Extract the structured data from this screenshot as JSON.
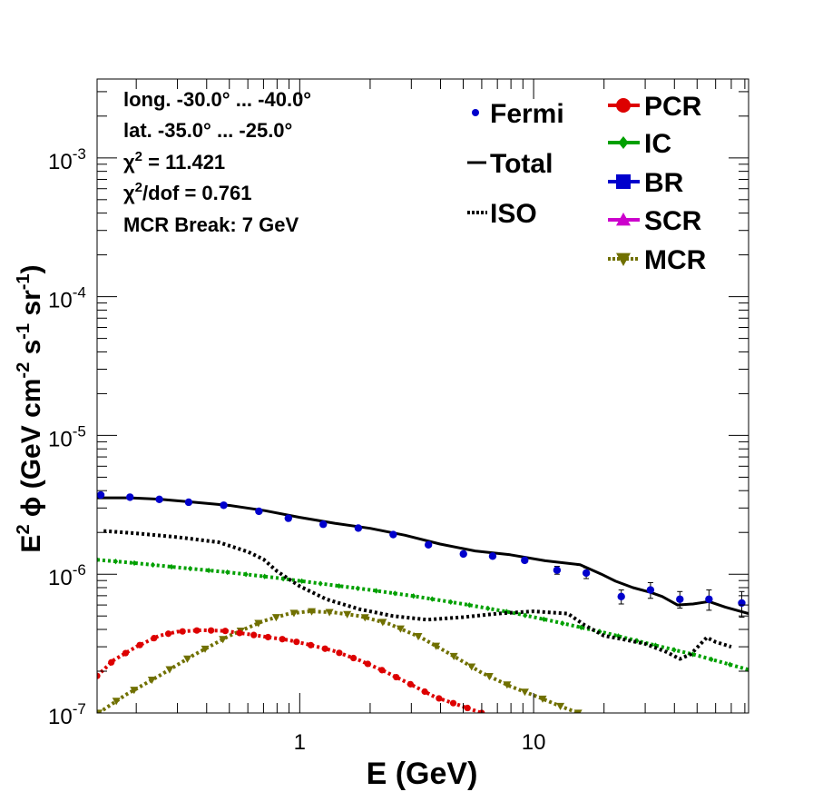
{
  "chart_data": {
    "type": "line",
    "xlabel": "E (GeV)",
    "ylabel": "E² ϕ (GeV cm⁻² s⁻¹ sr⁻¹)",
    "xscale": "log",
    "yscale": "log",
    "xlim": [
      0.136,
      83
    ],
    "ylim": [
      1e-07,
      0.0037
    ],
    "x_ticks": [
      {
        "value": 1,
        "label": "1"
      },
      {
        "value": 10,
        "label": "10"
      }
    ],
    "y_ticks": [
      {
        "value": 1e-07,
        "base": "10",
        "exp": "-7"
      },
      {
        "value": 1e-06,
        "base": "10",
        "exp": "-6"
      },
      {
        "value": 1e-05,
        "base": "10",
        "exp": "-5"
      },
      {
        "value": 0.0001,
        "base": "10",
        "exp": "-4"
      },
      {
        "value": 0.001,
        "base": "10",
        "exp": "-3"
      }
    ],
    "info": [
      {
        "text": "long. -30.0° ... -40.0°"
      },
      {
        "text": "lat. -35.0° ... -25.0°"
      },
      {
        "pre": "χ",
        "sup": "2",
        "post": " = 11.421"
      },
      {
        "pre": "χ",
        "sup": "2",
        "post": "/dof = 0.761"
      },
      {
        "text": "MCR Break:  7 GeV"
      }
    ],
    "legend_left": [
      {
        "label": "Fermi",
        "style": "points",
        "color": "#0000cc"
      },
      {
        "label": "Total",
        "style": "solid",
        "color": "#000000"
      },
      {
        "label": "ISO",
        "style": "dotted",
        "color": "#000000"
      }
    ],
    "legend_right": [
      {
        "label": "PCR",
        "style": "circle",
        "color": "#dd0000"
      },
      {
        "label": "IC",
        "style": "diamond",
        "color": "#00a000"
      },
      {
        "label": "BR",
        "style": "square",
        "color": "#0000cc"
      },
      {
        "label": "SCR",
        "style": "triangle",
        "color": "#cc00cc"
      },
      {
        "label": "MCR",
        "style": "triangle-down",
        "color": "#707000"
      }
    ],
    "fermi": {
      "x": [
        0.141,
        0.188,
        0.251,
        0.335,
        0.473,
        0.669,
        0.894,
        1.26,
        1.78,
        2.51,
        3.55,
        5.01,
        6.68,
        9.16,
        12.59,
        16.79,
        23.7,
        31.6,
        42.2,
        56.2,
        77.6
      ],
      "y": [
        3.72e-06,
        3.59e-06,
        3.46e-06,
        3.3e-06,
        3.14e-06,
        2.84e-06,
        2.53e-06,
        2.29e-06,
        2.15e-06,
        1.93e-06,
        1.63e-06,
        1.4e-06,
        1.35e-06,
        1.26e-06,
        1.07e-06,
        1.02e-06,
        6.9e-07,
        7.7e-07,
        6.6e-07,
        6.6e-07,
        6.2e-07
      ],
      "err": [
        1e-08,
        1e-08,
        1e-08,
        1e-08,
        1e-08,
        1e-08,
        1e-08,
        1e-08,
        1e-08,
        2e-08,
        3e-08,
        3e-08,
        4e-08,
        5e-08,
        7e-08,
        9e-08,
        8e-08,
        1e-07,
        9e-08,
        1.1e-07,
        1.3e-07
      ]
    },
    "series": [
      {
        "name": "Total",
        "color": "#000000",
        "x": [
          0.136,
          0.188,
          0.251,
          0.355,
          0.501,
          0.708,
          1.0,
          1.41,
          2.0,
          2.82,
          3.98,
          5.62,
          7.94,
          11.2,
          15.8,
          19.5,
          22.4,
          26.6,
          31.6,
          35.5,
          41.2,
          48.0,
          56.2,
          66.0,
          83.0
        ],
        "y": [
          3.55e-06,
          3.55e-06,
          3.47e-06,
          3.3e-06,
          3.13e-06,
          2.87e-06,
          2.57e-06,
          2.33e-06,
          2.14e-06,
          1.91e-06,
          1.65e-06,
          1.47e-06,
          1.38e-06,
          1.25e-06,
          1.17e-06,
          1e-06,
          8.9e-07,
          8e-07,
          7.4e-07,
          6.9e-07,
          6e-07,
          6.1e-07,
          6.35e-07,
          5.8e-07,
          5.2e-07
        ]
      },
      {
        "name": "ISO",
        "color": "#000000",
        "x": [
          0.145,
          0.2,
          0.3,
          0.45,
          0.6,
          0.7,
          0.8,
          1.0,
          1.3,
          1.8,
          2.5,
          3.5,
          5.0,
          7.0,
          10.0,
          14.0,
          16.5,
          20.0,
          24.0,
          30.0,
          37.0,
          42.2,
          47.0,
          55.0,
          60.0,
          70.0
        ],
        "y": [
          2.05e-06,
          1.97e-06,
          1.85e-06,
          1.7e-06,
          1.45e-06,
          1.28e-06,
          1.05e-06,
          8.2e-07,
          6.6e-07,
          5.6e-07,
          5e-07,
          4.7e-07,
          4.9e-07,
          5.2e-07,
          5.4e-07,
          5.2e-07,
          4.3e-07,
          3.6e-07,
          3.4e-07,
          3.15e-07,
          2.75e-07,
          2.45e-07,
          2.65e-07,
          3.5e-07,
          3.25e-07,
          3e-07
        ]
      },
      {
        "name": "IC",
        "color": "#00a000",
        "x": [
          0.136,
          0.2,
          0.3,
          0.5,
          0.8,
          1.2,
          2.0,
          3.0,
          5.0,
          8.0,
          12.0,
          20.0,
          30.0,
          50.0,
          83.0
        ],
        "y": [
          1.27e-06,
          1.2e-06,
          1.12e-06,
          1.03e-06,
          9.4e-07,
          8.6e-07,
          7.7e-07,
          7e-07,
          6.1e-07,
          5.3e-07,
          4.6e-07,
          3.8e-07,
          3.2e-07,
          2.6e-07,
          2.05e-07
        ]
      },
      {
        "name": "PCR",
        "color": "#dd0000",
        "x": [
          0.136,
          0.16,
          0.2,
          0.25,
          0.3,
          0.38,
          0.48,
          0.6,
          0.75,
          0.9,
          1.1,
          1.4,
          1.8,
          2.3,
          3.0,
          3.8,
          4.8,
          6.0
        ],
        "y": [
          1.85e-07,
          2.4e-07,
          3e-07,
          3.6e-07,
          3.85e-07,
          3.95e-07,
          3.9e-07,
          3.7e-07,
          3.5e-07,
          3.35e-07,
          3.1e-07,
          2.8e-07,
          2.4e-07,
          2e-07,
          1.6e-07,
          1.3e-07,
          1.14e-07,
          1e-07
        ]
      },
      {
        "name": "MCR",
        "color": "#707000",
        "x": [
          0.138,
          0.18,
          0.25,
          0.35,
          0.5,
          0.7,
          0.9,
          1.1,
          1.4,
          1.8,
          2.4,
          3.3,
          4.5,
          6.0,
          8.0,
          10.5,
          13.0,
          15.5
        ],
        "y": [
          1e-07,
          1.35e-07,
          1.85e-07,
          2.6e-07,
          3.6e-07,
          4.6e-07,
          5.2e-07,
          5.4e-07,
          5.3e-07,
          5e-07,
          4.4e-07,
          3.5e-07,
          2.6e-07,
          1.95e-07,
          1.55e-07,
          1.3e-07,
          1.12e-07,
          1e-07
        ]
      }
    ]
  }
}
